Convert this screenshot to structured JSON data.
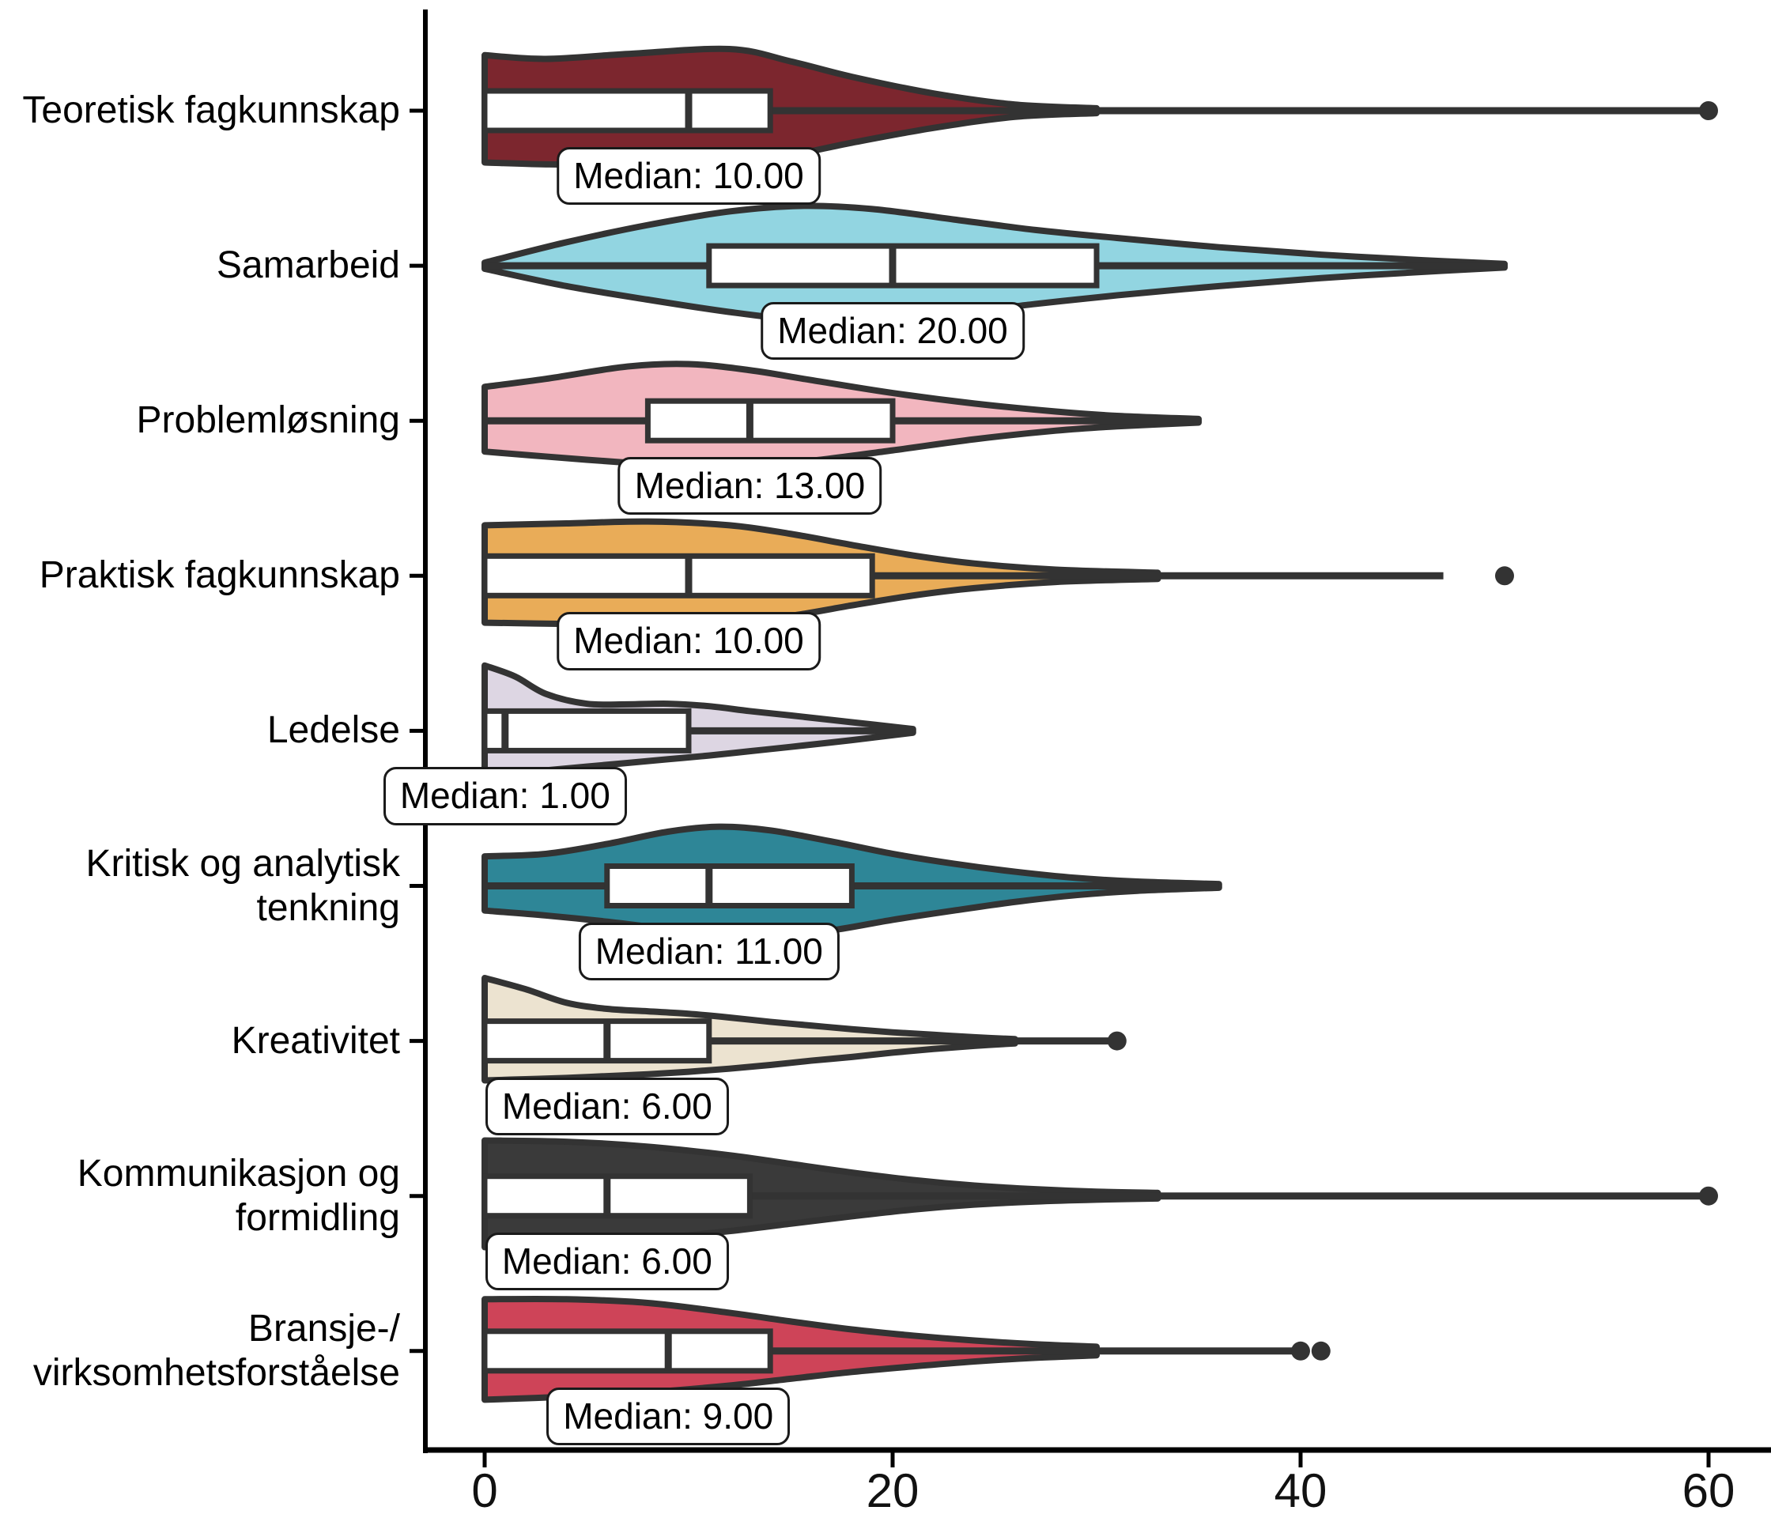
{
  "chart_data": {
    "type": "violin",
    "orientation": "horizontal",
    "title": "",
    "xlabel": "",
    "ylabel": "",
    "xlim": [
      0,
      60
    ],
    "x_tick_values": [
      0,
      20,
      40,
      60
    ],
    "x_tick_labels": [
      "0",
      "20",
      "40",
      "60"
    ],
    "grid": false,
    "legend": false,
    "style": {
      "background": "#ffffff",
      "axis_color": "#000000",
      "outline_color": "#333333",
      "box_fill": "#ffffff",
      "outlier_color": "#333333",
      "label_box_fill": "#ffffff",
      "label_box_border": "#1a1a1a",
      "text_color": "#000000"
    },
    "series": [
      {
        "category": "Teoretisk fagkunnskap",
        "label_lines": [
          "Teoretisk fagkunnskap"
        ],
        "color": "#7C262E",
        "median": 10,
        "q1": 0,
        "q3": 14,
        "median_label": "Median: 10.00",
        "whisker_start": 0,
        "whisker_end": 60,
        "outliers": [
          60
        ],
        "kde_profile": [
          [
            0,
            0.9,
            0.84
          ],
          [
            3,
            0.84,
            0.87
          ],
          [
            7,
            0.92,
            0.88
          ],
          [
            12,
            1.0,
            0.84
          ],
          [
            15,
            0.8,
            0.72
          ],
          [
            18,
            0.55,
            0.52
          ],
          [
            22,
            0.28,
            0.28
          ],
          [
            26,
            0.1,
            0.1
          ],
          [
            30,
            0.04,
            0.04
          ]
        ]
      },
      {
        "category": "Samarbeid",
        "label_lines": [
          "Samarbeid"
        ],
        "color": "#92D5E1",
        "median": 20,
        "q1": 11,
        "q3": 30,
        "median_label": "Median: 20.00",
        "whisker_start": 0,
        "whisker_end": 50,
        "outliers": [],
        "kde_profile": [
          [
            0,
            0.05,
            0.05
          ],
          [
            4,
            0.38,
            0.33
          ],
          [
            8,
            0.66,
            0.55
          ],
          [
            12,
            0.88,
            0.75
          ],
          [
            15.5,
            0.97,
            0.88
          ],
          [
            19,
            0.92,
            0.9
          ],
          [
            23,
            0.75,
            0.78
          ],
          [
            27,
            0.58,
            0.62
          ],
          [
            31,
            0.45,
            0.48
          ],
          [
            36,
            0.3,
            0.33
          ],
          [
            41,
            0.18,
            0.2
          ],
          [
            46,
            0.09,
            0.1
          ],
          [
            50,
            0.03,
            0.03
          ]
        ]
      },
      {
        "category": "Problemløsning",
        "label_lines": [
          "Problemløsning"
        ],
        "color": "#F2B6BF",
        "median": 13,
        "q1": 8,
        "q3": 20,
        "median_label": "Median: 13.00",
        "whisker_start": 0,
        "whisker_end": 35,
        "outliers": [],
        "kde_profile": [
          [
            0,
            0.55,
            0.5
          ],
          [
            3,
            0.68,
            0.58
          ],
          [
            7,
            0.88,
            0.68
          ],
          [
            10,
            0.92,
            0.73
          ],
          [
            13,
            0.82,
            0.73
          ],
          [
            16,
            0.66,
            0.65
          ],
          [
            20,
            0.45,
            0.48
          ],
          [
            24,
            0.28,
            0.3
          ],
          [
            28,
            0.15,
            0.16
          ],
          [
            31,
            0.08,
            0.09
          ],
          [
            35,
            0.03,
            0.03
          ]
        ]
      },
      {
        "category": "Praktisk fagkunnskap",
        "label_lines": [
          "Praktisk fagkunnskap"
        ],
        "color": "#E9AC58",
        "median": 10,
        "q1": 0,
        "q3": 19,
        "median_label": "Median: 10.00",
        "whisker_start": 0,
        "whisker_end": 47,
        "outliers": [
          50
        ],
        "kde_profile": [
          [
            0,
            0.82,
            0.76
          ],
          [
            4,
            0.85,
            0.78
          ],
          [
            8,
            0.88,
            0.79
          ],
          [
            12,
            0.82,
            0.76
          ],
          [
            15,
            0.68,
            0.65
          ],
          [
            18,
            0.5,
            0.48
          ],
          [
            21,
            0.33,
            0.32
          ],
          [
            24,
            0.2,
            0.2
          ],
          [
            28,
            0.1,
            0.1
          ],
          [
            33,
            0.05,
            0.05
          ]
        ]
      },
      {
        "category": "Ledelse",
        "label_lines": [
          "Ledelse"
        ],
        "color": "#DDD6E3",
        "median": 1,
        "q1": 0,
        "q3": 10,
        "median_label": "Median: 1.00",
        "whisker_start": 0,
        "whisker_end": 21,
        "outliers": [],
        "kde_profile": [
          [
            0,
            1.06,
            0.7
          ],
          [
            1.5,
            0.88,
            0.68
          ],
          [
            3,
            0.6,
            0.64
          ],
          [
            5,
            0.44,
            0.58
          ],
          [
            7,
            0.43,
            0.52
          ],
          [
            9,
            0.44,
            0.46
          ],
          [
            11,
            0.4,
            0.4
          ],
          [
            13,
            0.32,
            0.33
          ],
          [
            15,
            0.25,
            0.26
          ],
          [
            18,
            0.14,
            0.15
          ],
          [
            21,
            0.03,
            0.03
          ]
        ]
      },
      {
        "category": "Kritisk og analytisk tenkning",
        "label_lines": [
          "Kritisk og analytisk",
          "tenkning"
        ],
        "color": "#2E8697",
        "median": 11,
        "q1": 6,
        "q3": 18,
        "median_label": "Median: 11.00",
        "whisker_start": 0,
        "whisker_end": 36,
        "outliers": [],
        "kde_profile": [
          [
            0,
            0.48,
            0.4
          ],
          [
            3,
            0.52,
            0.48
          ],
          [
            6,
            0.68,
            0.58
          ],
          [
            9,
            0.88,
            0.7
          ],
          [
            11.5,
            0.96,
            0.78
          ],
          [
            14,
            0.9,
            0.8
          ],
          [
            17,
            0.72,
            0.72
          ],
          [
            20,
            0.52,
            0.55
          ],
          [
            23,
            0.36,
            0.4
          ],
          [
            26,
            0.23,
            0.26
          ],
          [
            29,
            0.13,
            0.15
          ],
          [
            32,
            0.07,
            0.08
          ],
          [
            36,
            0.03,
            0.03
          ]
        ]
      },
      {
        "category": "Kreativitet",
        "label_lines": [
          "Kreativitet"
        ],
        "color": "#ECE3D0",
        "median": 6,
        "q1": 0,
        "q3": 11,
        "median_label": "Median: 6.00",
        "whisker_start": 0,
        "whisker_end": 31,
        "outliers": [
          31
        ],
        "kde_profile": [
          [
            0,
            1.02,
            0.64
          ],
          [
            2,
            0.84,
            0.62
          ],
          [
            4,
            0.62,
            0.6
          ],
          [
            6,
            0.52,
            0.57
          ],
          [
            8,
            0.48,
            0.54
          ],
          [
            10,
            0.44,
            0.5
          ],
          [
            12,
            0.38,
            0.45
          ],
          [
            14,
            0.31,
            0.39
          ],
          [
            16,
            0.25,
            0.32
          ],
          [
            18,
            0.19,
            0.26
          ],
          [
            20,
            0.14,
            0.19
          ],
          [
            22,
            0.1,
            0.13
          ],
          [
            24,
            0.06,
            0.08
          ],
          [
            26,
            0.03,
            0.04
          ]
        ]
      },
      {
        "category": "Kommunikasjon og formidling",
        "label_lines": [
          "Kommunikasjon og",
          "formidling"
        ],
        "color": "#3A3A3A",
        "median": 6,
        "q1": 0,
        "q3": 13,
        "median_label": "Median: 6.00",
        "whisker_start": 0,
        "whisker_end": 60,
        "outliers": [
          60
        ],
        "kde_profile": [
          [
            0,
            0.9,
            0.83
          ],
          [
            4,
            0.88,
            0.8
          ],
          [
            8,
            0.8,
            0.7
          ],
          [
            12,
            0.66,
            0.57
          ],
          [
            15,
            0.52,
            0.45
          ],
          [
            18,
            0.38,
            0.33
          ],
          [
            21,
            0.26,
            0.22
          ],
          [
            24,
            0.17,
            0.14
          ],
          [
            27,
            0.11,
            0.09
          ],
          [
            30,
            0.07,
            0.06
          ],
          [
            33,
            0.05,
            0.04
          ]
        ]
      },
      {
        "category": "Bransje-/virksomhetsforståelse",
        "label_lines": [
          "Bransje-/",
          "virksomhetsforståelse"
        ],
        "color": "#CE4458",
        "median": 9,
        "q1": 0,
        "q3": 14,
        "median_label": "Median: 9.00",
        "whisker_start": 0,
        "whisker_end": 40,
        "outliers": [
          40,
          41
        ],
        "kde_profile": [
          [
            0,
            0.84,
            0.79
          ],
          [
            4,
            0.84,
            0.74
          ],
          [
            8,
            0.78,
            0.67
          ],
          [
            12,
            0.62,
            0.56
          ],
          [
            15,
            0.48,
            0.45
          ],
          [
            18,
            0.35,
            0.34
          ],
          [
            21,
            0.25,
            0.25
          ],
          [
            24,
            0.17,
            0.17
          ],
          [
            27,
            0.11,
            0.11
          ],
          [
            30,
            0.07,
            0.07
          ]
        ]
      }
    ]
  }
}
